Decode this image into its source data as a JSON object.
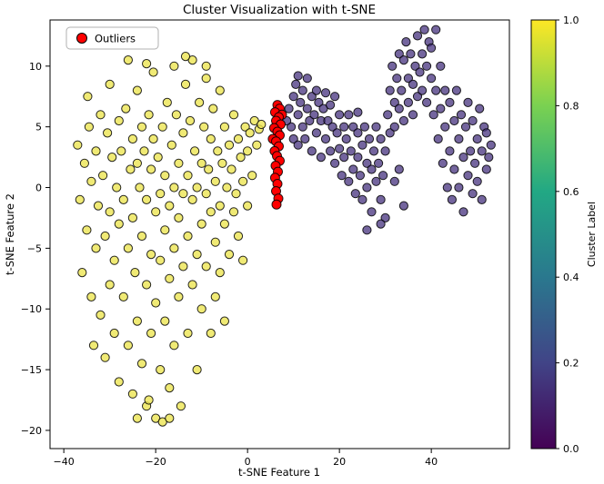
{
  "title": "Cluster Visualization with t-SNE",
  "chart_data": {
    "type": "scatter",
    "title": "Cluster Visualization with t-SNE",
    "xlabel": "t-SNE Feature 1",
    "ylabel": "t-SNE Feature 2",
    "xlim": [
      -43,
      57
    ],
    "ylim": [
      -21.5,
      13.8
    ],
    "xticks": [
      -40,
      -20,
      0,
      20,
      40
    ],
    "xtick_labels": [
      "−40",
      "−20",
      "0",
      "20",
      "40"
    ],
    "yticks": [
      -20,
      -15,
      -10,
      -5,
      0,
      5,
      10
    ],
    "ytick_labels": [
      "−20",
      "−15",
      "−10",
      "−5",
      "0",
      "5",
      "10"
    ],
    "grid": false,
    "legend": [
      {
        "label": "Outliers",
        "color": "#ff0000"
      }
    ],
    "legend_position": "upper left",
    "colorbar": {
      "label": "Cluster Label",
      "ticks": [
        0,
        0.2,
        0.4,
        0.6,
        0.8,
        1.0
      ],
      "tick_labels": [
        "0.0",
        "0.2",
        "0.4",
        "0.6",
        "0.8",
        "1.0"
      ],
      "colors": [
        "#440154",
        "#414487",
        "#2a788e",
        "#22a884",
        "#7ad151",
        "#fde725"
      ]
    },
    "series": [
      {
        "name": "cluster-1-yellow",
        "cluster_label": 1.0,
        "color": "#ece552",
        "opacity": 0.8,
        "size": 4.6,
        "points": [
          [
            -37,
            3.5
          ],
          [
            -36.5,
            -1
          ],
          [
            -36,
            -7
          ],
          [
            -35.5,
            2
          ],
          [
            -35,
            -3.5
          ],
          [
            -34.5,
            5
          ],
          [
            -34,
            0.5
          ],
          [
            -34,
            -9
          ],
          [
            -33.5,
            -13
          ],
          [
            -33,
            3
          ],
          [
            -33,
            -5
          ],
          [
            -32.5,
            -1.5
          ],
          [
            -32,
            6
          ],
          [
            -32,
            -10.5
          ],
          [
            -31.5,
            1
          ],
          [
            -31,
            -4
          ],
          [
            -31,
            -14
          ],
          [
            -30.5,
            4.5
          ],
          [
            -30,
            -2
          ],
          [
            -30,
            -8
          ],
          [
            -29.5,
            2.5
          ],
          [
            -29,
            -6
          ],
          [
            -29,
            -12
          ],
          [
            -28.5,
            0
          ],
          [
            -28,
            5.5
          ],
          [
            -28,
            -3
          ],
          [
            -28,
            -16
          ],
          [
            -27.5,
            3
          ],
          [
            -27,
            -1
          ],
          [
            -27,
            -9
          ],
          [
            -26.5,
            6.5
          ],
          [
            -26,
            -5
          ],
          [
            -26,
            -13
          ],
          [
            -25.5,
            1.5
          ],
          [
            -25,
            4
          ],
          [
            -25,
            -2.5
          ],
          [
            -25,
            -17
          ],
          [
            -24.5,
            -7
          ],
          [
            -24,
            2
          ],
          [
            -24,
            -11
          ],
          [
            -24,
            8
          ],
          [
            -23.5,
            0
          ],
          [
            -23,
            5
          ],
          [
            -23,
            -4
          ],
          [
            -23,
            -14.5
          ],
          [
            -22.5,
            3
          ],
          [
            -22,
            -1
          ],
          [
            -22,
            -8
          ],
          [
            -22,
            -18
          ],
          [
            -21.5,
            6
          ],
          [
            -21,
            1.5
          ],
          [
            -21,
            -5.5
          ],
          [
            -21,
            -12
          ],
          [
            -20.5,
            4
          ],
          [
            -20,
            -2
          ],
          [
            -20,
            -9.5
          ],
          [
            -20,
            -19
          ],
          [
            -20.5,
            9.5
          ],
          [
            -19.5,
            2.5
          ],
          [
            -19,
            -0.5
          ],
          [
            -19,
            -6
          ],
          [
            -19,
            -15
          ],
          [
            -18.5,
            5
          ],
          [
            -18,
            1
          ],
          [
            -18,
            -3.5
          ],
          [
            -18,
            -11
          ],
          [
            -17.5,
            7
          ],
          [
            -17,
            -1.5
          ],
          [
            -17,
            -7.5
          ],
          [
            -17,
            -16.5
          ],
          [
            -16.5,
            3.5
          ],
          [
            -16,
            0
          ],
          [
            -16,
            -5
          ],
          [
            -16,
            -13
          ],
          [
            -16,
            10
          ],
          [
            -15.5,
            6
          ],
          [
            -15,
            2
          ],
          [
            -15,
            -2.5
          ],
          [
            -15,
            -9
          ],
          [
            -14.5,
            -18
          ],
          [
            -14,
            4.5
          ],
          [
            -14,
            -0.5
          ],
          [
            -14,
            -6.5
          ],
          [
            -13.5,
            8.5
          ],
          [
            -13,
            1
          ],
          [
            -13,
            -4
          ],
          [
            -13,
            -12
          ],
          [
            -12.5,
            5.5
          ],
          [
            -12,
            -1
          ],
          [
            -12,
            -8
          ],
          [
            -12,
            10.5
          ],
          [
            -11.5,
            3
          ],
          [
            -11,
            0
          ],
          [
            -11,
            -5.5
          ],
          [
            -11,
            -15
          ],
          [
            -10.5,
            7
          ],
          [
            -10,
            2
          ],
          [
            -10,
            -3
          ],
          [
            -10,
            -10
          ],
          [
            -9.5,
            5
          ],
          [
            -9,
            -0.5
          ],
          [
            -9,
            -6.5
          ],
          [
            -9,
            9
          ],
          [
            -8.5,
            1.5
          ],
          [
            -8,
            -2
          ],
          [
            -8,
            -12
          ],
          [
            -8,
            4
          ],
          [
            -7.5,
            6.5
          ],
          [
            -7,
            0.5
          ],
          [
            -7,
            -4.5
          ],
          [
            -7,
            -9
          ],
          [
            -6.5,
            3
          ],
          [
            -6,
            -1.5
          ],
          [
            -6,
            -7
          ],
          [
            -6,
            8
          ],
          [
            -5.5,
            2
          ],
          [
            -5,
            -3
          ],
          [
            -5,
            5
          ],
          [
            -5,
            -11
          ],
          [
            -4.5,
            0
          ],
          [
            -4,
            -5.5
          ],
          [
            -4,
            3.5
          ],
          [
            -3.5,
            1.5
          ],
          [
            -3,
            -2
          ],
          [
            -3,
            6
          ],
          [
            -2.5,
            -0.5
          ],
          [
            -2,
            4
          ],
          [
            -2,
            -4
          ],
          [
            -1.5,
            2.5
          ],
          [
            -1,
            0.5
          ],
          [
            -1,
            -6
          ],
          [
            -0.5,
            5
          ],
          [
            0,
            3
          ],
          [
            0,
            -1.5
          ],
          [
            0.5,
            4.5
          ],
          [
            1,
            1
          ],
          [
            1.5,
            5.5
          ],
          [
            2,
            3.5
          ],
          [
            2.5,
            4.8
          ],
          [
            3,
            5.2
          ],
          [
            -21.5,
            -17.5
          ],
          [
            -18.5,
            -19.3
          ],
          [
            -26,
            10.5
          ],
          [
            -22,
            10.2
          ],
          [
            -13.5,
            10.8
          ],
          [
            -9,
            10
          ],
          [
            -34.8,
            7.5
          ],
          [
            -30,
            8.5
          ],
          [
            -24,
            -19
          ],
          [
            -17,
            -19
          ]
        ]
      },
      {
        "name": "cluster-0-purple",
        "cluster_label": 0.0,
        "color": "#46327e",
        "opacity": 0.75,
        "size": 4.6,
        "points": [
          [
            9,
            6.5
          ],
          [
            9.5,
            5
          ],
          [
            10,
            7.5
          ],
          [
            10,
            4
          ],
          [
            10.5,
            8.5
          ],
          [
            11,
            6
          ],
          [
            11,
            3.5
          ],
          [
            11.5,
            7
          ],
          [
            12,
            5
          ],
          [
            12,
            8
          ],
          [
            12.5,
            4
          ],
          [
            13,
            6.5
          ],
          [
            13,
            9
          ],
          [
            13.5,
            5.5
          ],
          [
            14,
            7.5
          ],
          [
            14,
            3
          ],
          [
            14.5,
            6
          ],
          [
            15,
            8
          ],
          [
            15,
            4.5
          ],
          [
            15.5,
            7
          ],
          [
            16,
            5.5
          ],
          [
            16,
            2.5
          ],
          [
            16.5,
            6.5
          ],
          [
            17,
            4
          ],
          [
            17,
            7.8
          ],
          [
            17.5,
            5.5
          ],
          [
            18,
            3
          ],
          [
            18,
            6.8
          ],
          [
            18.5,
            5
          ],
          [
            19,
            7.5
          ],
          [
            19,
            2
          ],
          [
            19.5,
            4.5
          ],
          [
            20,
            6
          ],
          [
            20,
            3.2
          ],
          [
            20.5,
            1
          ],
          [
            21,
            5
          ],
          [
            21,
            2.5
          ],
          [
            21.5,
            4
          ],
          [
            22,
            0.5
          ],
          [
            22,
            6
          ],
          [
            22.5,
            3
          ],
          [
            23,
            1.5
          ],
          [
            23,
            5
          ],
          [
            23.5,
            -0.5
          ],
          [
            24,
            2.5
          ],
          [
            24,
            4.5
          ],
          [
            24.5,
            1
          ],
          [
            25,
            3.5
          ],
          [
            25,
            -1
          ],
          [
            25.5,
            5
          ],
          [
            26,
            2
          ],
          [
            26,
            0
          ],
          [
            26.5,
            4
          ],
          [
            27,
            1.5
          ],
          [
            27,
            -2
          ],
          [
            27.5,
            3
          ],
          [
            28,
            0.5
          ],
          [
            28,
            5
          ],
          [
            28.5,
            2
          ],
          [
            29,
            -1
          ],
          [
            29,
            4
          ],
          [
            29.5,
            1
          ],
          [
            30,
            3
          ],
          [
            30,
            -2.5
          ],
          [
            30.5,
            6
          ],
          [
            31,
            4.5
          ],
          [
            31,
            8
          ],
          [
            31.5,
            10
          ],
          [
            32,
            7
          ],
          [
            32,
            5
          ],
          [
            32.5,
            9
          ],
          [
            33,
            11
          ],
          [
            33,
            6.5
          ],
          [
            33.5,
            8
          ],
          [
            34,
            10.5
          ],
          [
            34,
            5.5
          ],
          [
            34.5,
            12
          ],
          [
            35,
            9
          ],
          [
            35,
            7
          ],
          [
            35.5,
            11
          ],
          [
            36,
            8.5
          ],
          [
            36,
            6
          ],
          [
            36.5,
            10
          ],
          [
            37,
            12.5
          ],
          [
            37,
            7.5
          ],
          [
            37.5,
            9.5
          ],
          [
            38,
            11
          ],
          [
            38,
            8
          ],
          [
            38.5,
            13
          ],
          [
            39,
            10
          ],
          [
            39,
            7
          ],
          [
            39.5,
            12
          ],
          [
            40,
            9
          ],
          [
            40,
            11.5
          ],
          [
            40.5,
            6
          ],
          [
            41,
            13
          ],
          [
            41,
            8
          ],
          [
            41.5,
            4
          ],
          [
            42,
            10
          ],
          [
            42,
            6.5
          ],
          [
            42.5,
            2
          ],
          [
            43,
            8
          ],
          [
            43,
            5
          ],
          [
            43.5,
            0
          ],
          [
            44,
            7
          ],
          [
            44,
            3
          ],
          [
            44.5,
            -1
          ],
          [
            45,
            5.5
          ],
          [
            45,
            1.5
          ],
          [
            45.5,
            8
          ],
          [
            46,
            4
          ],
          [
            46,
            0
          ],
          [
            46.5,
            6
          ],
          [
            47,
            2.5
          ],
          [
            47,
            -2
          ],
          [
            47.5,
            5
          ],
          [
            48,
            1
          ],
          [
            48,
            7
          ],
          [
            48.5,
            3
          ],
          [
            49,
            -0.5
          ],
          [
            49,
            5.5
          ],
          [
            49.5,
            2
          ],
          [
            50,
            4
          ],
          [
            50,
            0.5
          ],
          [
            50.5,
            6.5
          ],
          [
            51,
            3
          ],
          [
            51,
            -1
          ],
          [
            51.5,
            5
          ],
          [
            52,
            1.5
          ],
          [
            52,
            4.5
          ],
          [
            52.5,
            2.5
          ],
          [
            53,
            3.5
          ],
          [
            8.5,
            5.5
          ],
          [
            11,
            9.2
          ],
          [
            24,
            6.2
          ],
          [
            32,
            0.5
          ],
          [
            34,
            -1.5
          ],
          [
            33,
            1.5
          ],
          [
            29,
            -3
          ],
          [
            26,
            -3.5
          ]
        ]
      },
      {
        "name": "outliers-red",
        "color": "#ff0000",
        "opacity": 1,
        "size": 5,
        "points": [
          [
            6.5,
            6.8
          ],
          [
            7,
            6.5
          ],
          [
            6,
            6.2
          ],
          [
            7.5,
            6
          ],
          [
            6.8,
            5.8
          ],
          [
            6.2,
            5.5
          ],
          [
            7.2,
            5.2
          ],
          [
            5.8,
            4.9
          ],
          [
            6.5,
            4.6
          ],
          [
            7,
            4.3
          ],
          [
            5.5,
            4.0
          ],
          [
            6.2,
            3.8
          ],
          [
            6.8,
            3.4
          ],
          [
            5.9,
            3.0
          ],
          [
            6.4,
            2.6
          ],
          [
            7.0,
            2.2
          ],
          [
            6.1,
            1.8
          ],
          [
            6.6,
            1.3
          ],
          [
            6.0,
            0.8
          ],
          [
            6.5,
            0.3
          ],
          [
            6.2,
            -0.3
          ],
          [
            6.7,
            -0.9
          ],
          [
            6.3,
            -1.4
          ]
        ]
      }
    ]
  }
}
